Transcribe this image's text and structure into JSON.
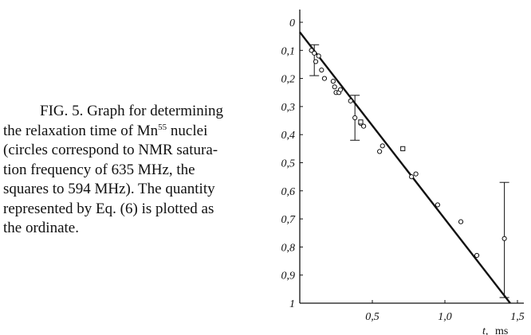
{
  "caption": {
    "line1": "FIG. 5.  Graph for determining",
    "line2_pre": "the relaxation time of Mn",
    "line2_sup": "55",
    "line2_post": " nuclei",
    "line3": "(circles correspond to NMR satura-",
    "line4": "tion frequency of 635 MHz, the",
    "line5": "squares to 594 MHz). The quantity",
    "line6": "represented by Eq. (6) is plotted as",
    "line7": "the ordinate."
  },
  "chart_data": {
    "type": "scatter",
    "title": "",
    "xlabel_var": "t,",
    "xlabel_unit": "ms",
    "ylabel": "",
    "xlim": [
      0,
      1.5
    ],
    "ylim": [
      0,
      1
    ],
    "y_inverted": true,
    "x_ticks": [
      {
        "value": 0.5,
        "label": "0,5"
      },
      {
        "value": 1.0,
        "label": "1,0"
      },
      {
        "value": 1.5,
        "label": "1,5"
      }
    ],
    "y_ticks": [
      {
        "value": 0,
        "label": "0"
      },
      {
        "value": 0.1,
        "label": "0,1"
      },
      {
        "value": 0.2,
        "label": "0,2"
      },
      {
        "value": 0.3,
        "label": "0,3"
      },
      {
        "value": 0.4,
        "label": "0,4"
      },
      {
        "value": 0.5,
        "label": "0,5"
      },
      {
        "value": 0.6,
        "label": "0,6"
      },
      {
        "value": 0.7,
        "label": "0,7"
      },
      {
        "value": 0.8,
        "label": "0,8"
      },
      {
        "value": 0.9,
        "label": "0,9"
      },
      {
        "value": 1.0,
        "label": "1"
      }
    ],
    "series": [
      {
        "marker": "circle",
        "points": [
          [
            0.08,
            0.1
          ],
          [
            0.1,
            0.11
          ],
          [
            0.11,
            0.14
          ],
          [
            0.13,
            0.12
          ],
          [
            0.15,
            0.17
          ],
          [
            0.17,
            0.2
          ],
          [
            0.23,
            0.21
          ],
          [
            0.24,
            0.23
          ],
          [
            0.25,
            0.25
          ],
          [
            0.27,
            0.25
          ],
          [
            0.28,
            0.24
          ],
          [
            0.35,
            0.28
          ],
          [
            0.38,
            0.34
          ],
          [
            0.42,
            0.36
          ],
          [
            0.44,
            0.37
          ],
          [
            0.55,
            0.46
          ],
          [
            0.57,
            0.44
          ],
          [
            0.77,
            0.55
          ],
          [
            0.8,
            0.54
          ],
          [
            0.95,
            0.65
          ],
          [
            1.11,
            0.71
          ],
          [
            1.22,
            0.83
          ],
          [
            1.41,
            0.77
          ]
        ]
      },
      {
        "marker": "square",
        "points": [
          [
            0.42,
            0.355
          ],
          [
            0.71,
            0.45
          ]
        ]
      }
    ],
    "error_bars": [
      {
        "x": 0.1,
        "y": 0.13,
        "ylow": 0.08,
        "yhigh": 0.19
      },
      {
        "x": 0.38,
        "y": 0.34,
        "ylow": 0.26,
        "yhigh": 0.42
      },
      {
        "x": 1.41,
        "y": 0.77,
        "ylow": 0.57,
        "yhigh": 0.98
      }
    ],
    "fit_line": {
      "x": [
        0,
        1.45
      ],
      "y": [
        0.035,
        1.0
      ]
    }
  }
}
